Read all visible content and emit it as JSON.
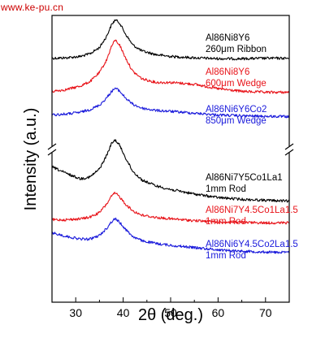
{
  "watermark": "www.ke-pu.cn",
  "chart_data": {
    "type": "line",
    "xlabel": "2θ (deg.)",
    "ylabel": "Intensity (a.u.)",
    "xlim": [
      25,
      75
    ],
    "xticks": [
      30,
      40,
      50,
      60,
      70
    ],
    "y_axis_break": true,
    "grid": false,
    "legend": "none",
    "series": [
      {
        "name": "Al86Ni8Y6 260μm Ribbon",
        "label_lines": [
          "Al86Ni8Y6",
          "260μm Ribbon"
        ],
        "color": "#000000",
        "x": [
          25,
          28,
          31,
          33,
          35,
          36.5,
          37.5,
          38.3,
          39.2,
          40.5,
          42,
          44,
          47,
          50,
          55,
          60,
          65,
          70,
          75
        ],
        "y": [
          0.06,
          0.07,
          0.1,
          0.16,
          0.3,
          0.55,
          0.8,
          0.92,
          0.86,
          0.6,
          0.36,
          0.22,
          0.14,
          0.1,
          0.07,
          0.05,
          0.05,
          0.06,
          0.06
        ]
      },
      {
        "name": "Al86Ni8Y6 600μm Wedge",
        "label_lines": [
          "Al86Ni8Y6",
          "600μm Wedge"
        ],
        "color": "#e8141a",
        "x": [
          25,
          28,
          31,
          33,
          35,
          36.5,
          37.5,
          38.3,
          39.2,
          40.5,
          42,
          44,
          47,
          50,
          55,
          60,
          65,
          70,
          75
        ],
        "y": [
          0.1,
          0.14,
          0.22,
          0.32,
          0.52,
          0.8,
          1.1,
          1.25,
          1.15,
          0.85,
          0.55,
          0.38,
          0.3,
          0.3,
          0.26,
          0.16,
          0.1,
          0.08,
          0.08
        ]
      },
      {
        "name": "Al86Ni6Y6Co2 850μm Wedge",
        "label_lines": [
          "Al86Ni6Y6Co2",
          "850μm Wedge"
        ],
        "color": "#1a1adb",
        "x": [
          25,
          28,
          31,
          33,
          35,
          36.5,
          37.5,
          38.3,
          39.2,
          40.5,
          42,
          44,
          47,
          50,
          55,
          60,
          65,
          70,
          75
        ],
        "y": [
          0.1,
          0.12,
          0.16,
          0.22,
          0.32,
          0.48,
          0.62,
          0.7,
          0.64,
          0.48,
          0.34,
          0.25,
          0.2,
          0.18,
          0.14,
          0.1,
          0.08,
          0.07,
          0.06
        ]
      },
      {
        "name": "Al86Ni7Y5Co1La1 1mm Rod",
        "label_lines": [
          "Al86Ni7Y5Co1La1",
          "1mm Rod"
        ],
        "color": "#000000",
        "x": [
          25,
          28,
          31,
          33,
          35,
          36.5,
          37.5,
          38.3,
          39.2,
          40.5,
          42,
          44,
          47,
          50,
          55,
          60,
          65,
          70,
          75
        ],
        "y": [
          0.85,
          0.7,
          0.58,
          0.62,
          0.8,
          1.1,
          1.36,
          1.45,
          1.34,
          1.05,
          0.75,
          0.55,
          0.42,
          0.34,
          0.24,
          0.16,
          0.12,
          0.1,
          0.08
        ]
      },
      {
        "name": "Al86Ni7Y4.5Co1La1.5 1mm Rod",
        "label_lines": [
          "Al86Ni7Y4.5Co1La1.5",
          "1mm Rod"
        ],
        "color": "#e8141a",
        "x": [
          25,
          28,
          31,
          33,
          35,
          36.5,
          37.5,
          38.3,
          39.2,
          40.5,
          42,
          44,
          47,
          50,
          55,
          60,
          65,
          70,
          75
        ],
        "y": [
          0.1,
          0.1,
          0.12,
          0.16,
          0.26,
          0.45,
          0.62,
          0.7,
          0.62,
          0.45,
          0.3,
          0.2,
          0.15,
          0.12,
          0.08,
          0.05,
          0.04,
          0.03,
          0.03
        ]
      },
      {
        "name": "Al86Ni6Y4.5Co2La1.5 1mm Rod",
        "label_lines": [
          "Al86Ni6Y4.5Co2La1.5",
          "1mm Rod"
        ],
        "color": "#1a1adb",
        "x": [
          25,
          28,
          31,
          33,
          35,
          36.5,
          37.5,
          38.3,
          39.2,
          40.5,
          42,
          44,
          47,
          50,
          55,
          60,
          65,
          70,
          75
        ],
        "y": [
          0.48,
          0.4,
          0.34,
          0.34,
          0.42,
          0.58,
          0.72,
          0.8,
          0.72,
          0.56,
          0.4,
          0.3,
          0.24,
          0.2,
          0.15,
          0.1,
          0.07,
          0.05,
          0.04
        ]
      }
    ]
  }
}
